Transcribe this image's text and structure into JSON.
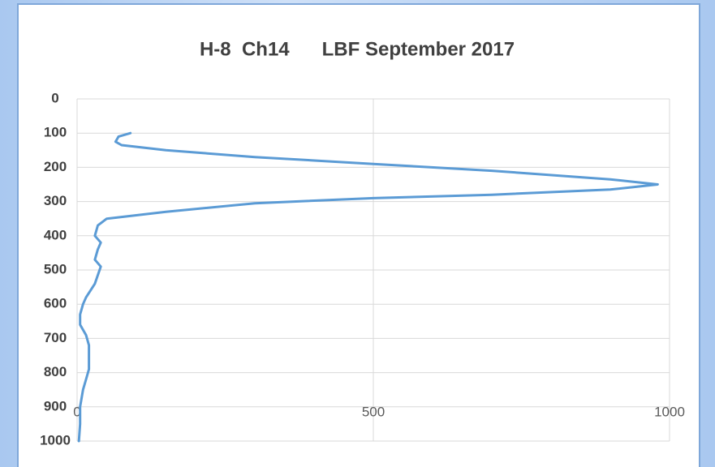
{
  "chart_data": {
    "type": "line",
    "title": "H-8  Ch14      LBF September 2017",
    "x": [
      90,
      70,
      65,
      75,
      150,
      300,
      500,
      700,
      900,
      980,
      900,
      700,
      500,
      300,
      150,
      50,
      35,
      30,
      40,
      35,
      30,
      40,
      30,
      15,
      10,
      5,
      5,
      15,
      20,
      20,
      15,
      10,
      5,
      5,
      3
    ],
    "values": [
      100,
      110,
      125,
      135,
      150,
      170,
      190,
      210,
      235,
      250,
      265,
      280,
      290,
      305,
      330,
      350,
      370,
      400,
      420,
      440,
      470,
      490,
      540,
      580,
      600,
      630,
      660,
      690,
      720,
      790,
      820,
      850,
      900,
      950,
      1000
    ],
    "color": "#5b9bd5",
    "xlim": [
      0,
      1000
    ],
    "xticks": [
      0,
      500,
      1000
    ],
    "ylim": [
      0,
      1000
    ],
    "yticks": [
      0,
      100,
      200,
      300,
      400,
      500,
      600,
      700,
      800,
      900,
      1000
    ],
    "y_reversed": true,
    "grid": true
  }
}
